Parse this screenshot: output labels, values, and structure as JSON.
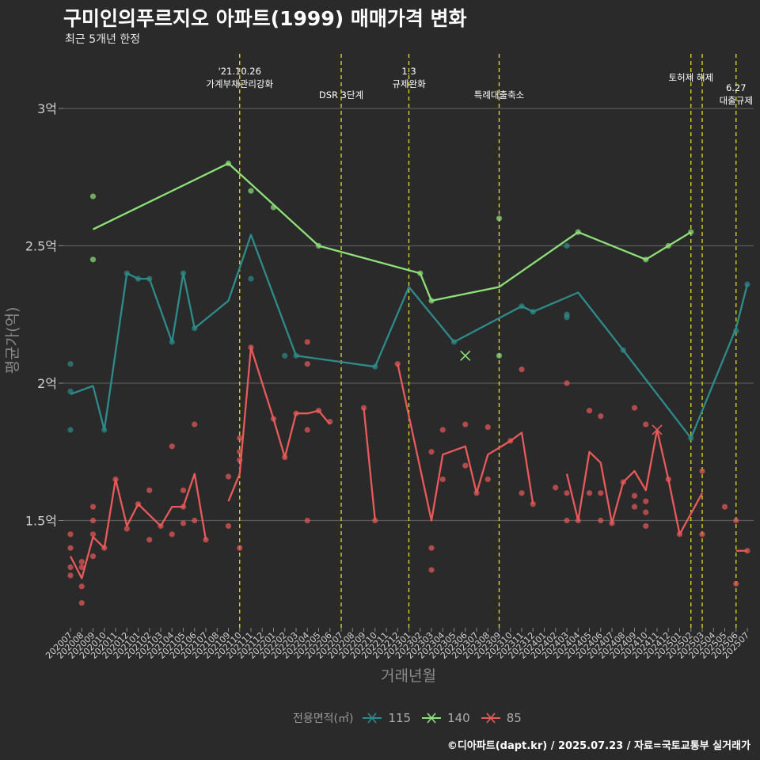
{
  "title": "구미인의푸르지오 아파트(1999) 매매가격 변화",
  "subtitle": "최근 5개년 한정",
  "caption": "©디아파트(dapt.kr) / 2025.07.23 / 자료=국토교통부 실거래가",
  "legend": {
    "title": "전용면적(㎡)",
    "items": [
      {
        "label": "115",
        "color": "#2e8b8b"
      },
      {
        "label": "140",
        "color": "#8ee07a"
      },
      {
        "label": "85",
        "color": "#e85a5a"
      }
    ]
  },
  "chart_data": {
    "type": "line",
    "xlabel": "거래년월",
    "ylabel": "평균가(억)",
    "ylim": [
      1.1,
      3.2
    ],
    "grid": true,
    "legend_position": "bottom",
    "categories": [
      "202007",
      "202008",
      "202009",
      "202010",
      "202011",
      "202012",
      "202101",
      "202102",
      "202103",
      "202104",
      "202105",
      "202106",
      "202107",
      "202108",
      "202109",
      "202110",
      "202111",
      "202112",
      "202201",
      "202202",
      "202203",
      "202204",
      "202205",
      "202206",
      "202207",
      "202208",
      "202209",
      "202210",
      "202211",
      "202212",
      "202301",
      "202302",
      "202303",
      "202304",
      "202305",
      "202306",
      "202307",
      "202308",
      "202309",
      "202310",
      "202311",
      "202312",
      "202401",
      "202402",
      "202403",
      "202404",
      "202405",
      "202406",
      "202407",
      "202408",
      "202409",
      "202410",
      "202411",
      "202412",
      "202501",
      "202502",
      "202503",
      "202504",
      "202505",
      "202506",
      "202507"
    ],
    "yticks": [
      {
        "value": 1.5,
        "label": "1.5억"
      },
      {
        "value": 2,
        "label": "2억"
      },
      {
        "value": 2.5,
        "label": "2.5억"
      },
      {
        "value": 3,
        "label": "3억"
      }
    ],
    "series": [
      {
        "name": "115",
        "color": "#2e8b8b",
        "line": [
          [
            "202007",
            1.96
          ],
          [
            "202009",
            1.99
          ],
          [
            "202010",
            1.83
          ],
          [
            "202012",
            2.4
          ],
          [
            "202101",
            2.38
          ],
          [
            "202102",
            2.38
          ],
          [
            "202104",
            2.15
          ],
          [
            "202105",
            2.4
          ],
          [
            "202106",
            2.2
          ],
          [
            "202109",
            2.3
          ],
          [
            "202111",
            2.54
          ],
          [
            "202203",
            2.1
          ],
          [
            "202210",
            2.06
          ],
          [
            "202301",
            2.35
          ],
          [
            "202305",
            2.15
          ],
          [
            "202311",
            2.28
          ],
          [
            "202312",
            2.26
          ],
          [
            "202404",
            2.33
          ],
          [
            "202408",
            2.12
          ],
          [
            "202502",
            1.8
          ],
          [
            "202506",
            2.2
          ],
          [
            "202507",
            2.36
          ]
        ],
        "points": [
          [
            "202007",
            1.97
          ],
          [
            "202007",
            2.07
          ],
          [
            "202007",
            1.83
          ],
          [
            "202010",
            1.83
          ],
          [
            "202012",
            2.4
          ],
          [
            "202101",
            2.38
          ],
          [
            "202102",
            2.38
          ],
          [
            "202104",
            2.15
          ],
          [
            "202105",
            2.4
          ],
          [
            "202106",
            2.2
          ],
          [
            "202111",
            2.38
          ],
          [
            "202202",
            2.1
          ],
          [
            "202203",
            2.1
          ],
          [
            "202210",
            2.06
          ],
          [
            "202305",
            2.15
          ],
          [
            "202311",
            2.28
          ],
          [
            "202312",
            2.26
          ],
          [
            "202403",
            2.5
          ],
          [
            "202403",
            2.25
          ],
          [
            "202403",
            2.24
          ],
          [
            "202408",
            2.12
          ],
          [
            "202502",
            1.8
          ],
          [
            "202506",
            2.19
          ],
          [
            "202507",
            2.36
          ]
        ],
        "cross": []
      },
      {
        "name": "140",
        "color": "#8ee07a",
        "line": [
          [
            "202009",
            2.56
          ],
          [
            "202109",
            2.8
          ],
          [
            "202205",
            2.5
          ],
          [
            "202302",
            2.4
          ],
          [
            "202303",
            2.3
          ],
          [
            "202309",
            2.35
          ],
          [
            "202404",
            2.55
          ],
          [
            "202410",
            2.45
          ],
          [
            "202412",
            2.5
          ],
          [
            "202502",
            2.55
          ]
        ],
        "points": [
          [
            "202009",
            2.68
          ],
          [
            "202009",
            2.45
          ],
          [
            "202109",
            2.8
          ],
          [
            "202111",
            2.7
          ],
          [
            "202201",
            2.64
          ],
          [
            "202205",
            2.5
          ],
          [
            "202302",
            2.4
          ],
          [
            "202303",
            2.3
          ],
          [
            "202309",
            2.6
          ],
          [
            "202309",
            2.1
          ],
          [
            "202404",
            2.55
          ],
          [
            "202410",
            2.45
          ],
          [
            "202412",
            2.5
          ],
          [
            "202502",
            2.55
          ]
        ],
        "cross": [
          [
            "202306",
            2.1
          ]
        ]
      },
      {
        "name": "85",
        "color": "#e85a5a",
        "segments": [
          [
            [
              "202007",
              1.37
            ],
            [
              "202008",
              1.29
            ],
            [
              "202009",
              1.44
            ],
            [
              "202010",
              1.4
            ],
            [
              "202011",
              1.65
            ],
            [
              "202012",
              1.48
            ],
            [
              "202101",
              1.56
            ],
            [
              "202103",
              1.48
            ],
            [
              "202104",
              1.55
            ],
            [
              "202105",
              1.55
            ],
            [
              "202106",
              1.67
            ],
            [
              "202107",
              1.43
            ]
          ],
          [
            [
              "202109",
              1.57
            ],
            [
              "202110",
              1.67
            ],
            [
              "202111",
              2.13
            ],
            [
              "202201",
              1.87
            ],
            [
              "202202",
              1.73
            ],
            [
              "202203",
              1.89
            ],
            [
              "202204",
              1.89
            ],
            [
              "202205",
              1.9
            ],
            [
              "202206",
              1.85
            ]
          ],
          [
            [
              "202209",
              1.91
            ],
            [
              "202210",
              1.5
            ]
          ],
          [
            [
              "202212",
              2.07
            ],
            [
              "202303",
              1.5
            ],
            [
              "202304",
              1.74
            ],
            [
              "202306",
              1.77
            ],
            [
              "202307",
              1.6
            ],
            [
              "202308",
              1.74
            ],
            [
              "202310",
              1.79
            ],
            [
              "202311",
              1.82
            ],
            [
              "202312",
              1.56
            ]
          ],
          [
            [
              "202403",
              1.67
            ],
            [
              "202404",
              1.5
            ],
            [
              "202405",
              1.75
            ],
            [
              "202406",
              1.71
            ],
            [
              "202407",
              1.49
            ],
            [
              "202408",
              1.64
            ],
            [
              "202409",
              1.68
            ],
            [
              "202410",
              1.61
            ],
            [
              "202411",
              1.83
            ],
            [
              "202412",
              1.65
            ],
            [
              "202501",
              1.45
            ],
            [
              "202503",
              1.6
            ]
          ],
          [
            [
              "202506",
              1.39
            ],
            [
              "202507",
              1.39
            ]
          ]
        ],
        "points": [
          [
            "202007",
            1.45
          ],
          [
            "202007",
            1.4
          ],
          [
            "202007",
            1.33
          ],
          [
            "202007",
            1.3
          ],
          [
            "202008",
            1.35
          ],
          [
            "202008",
            1.33
          ],
          [
            "202008",
            1.26
          ],
          [
            "202008",
            1.2
          ],
          [
            "202009",
            1.55
          ],
          [
            "202009",
            1.5
          ],
          [
            "202009",
            1.45
          ],
          [
            "202009",
            1.37
          ],
          [
            "202010",
            1.4
          ],
          [
            "202011",
            1.65
          ],
          [
            "202012",
            1.47
          ],
          [
            "202101",
            1.56
          ],
          [
            "202102",
            1.61
          ],
          [
            "202102",
            1.43
          ],
          [
            "202103",
            1.48
          ],
          [
            "202104",
            1.77
          ],
          [
            "202104",
            1.45
          ],
          [
            "202105",
            1.61
          ],
          [
            "202105",
            1.55
          ],
          [
            "202105",
            1.49
          ],
          [
            "202106",
            1.85
          ],
          [
            "202106",
            1.5
          ],
          [
            "202107",
            1.43
          ],
          [
            "202109",
            1.66
          ],
          [
            "202109",
            1.48
          ],
          [
            "202110",
            1.8
          ],
          [
            "202110",
            1.75
          ],
          [
            "202110",
            1.72
          ],
          [
            "202110",
            1.4
          ],
          [
            "202111",
            2.13
          ],
          [
            "202201",
            1.87
          ],
          [
            "202202",
            1.73
          ],
          [
            "202203",
            1.89
          ],
          [
            "202204",
            2.15
          ],
          [
            "202204",
            2.07
          ],
          [
            "202204",
            1.83
          ],
          [
            "202204",
            1.5
          ],
          [
            "202205",
            1.9
          ],
          [
            "202206",
            1.86
          ],
          [
            "202209",
            1.91
          ],
          [
            "202210",
            1.5
          ],
          [
            "202212",
            2.07
          ],
          [
            "202303",
            1.75
          ],
          [
            "202303",
            1.4
          ],
          [
            "202303",
            1.32
          ],
          [
            "202304",
            1.83
          ],
          [
            "202304",
            1.65
          ],
          [
            "202306",
            1.85
          ],
          [
            "202306",
            1.7
          ],
          [
            "202307",
            1.6
          ],
          [
            "202308",
            1.84
          ],
          [
            "202308",
            1.65
          ],
          [
            "202310",
            1.79
          ],
          [
            "202311",
            1.6
          ],
          [
            "202311",
            2.05
          ],
          [
            "202312",
            1.56
          ],
          [
            "202402",
            1.62
          ],
          [
            "202403",
            2.0
          ],
          [
            "202403",
            1.6
          ],
          [
            "202403",
            1.5
          ],
          [
            "202404",
            1.5
          ],
          [
            "202405",
            1.9
          ],
          [
            "202405",
            1.6
          ],
          [
            "202406",
            1.88
          ],
          [
            "202406",
            1.6
          ],
          [
            "202406",
            1.5
          ],
          [
            "202407",
            1.49
          ],
          [
            "202408",
            1.64
          ],
          [
            "202409",
            1.91
          ],
          [
            "202409",
            1.59
          ],
          [
            "202409",
            1.55
          ],
          [
            "202410",
            1.85
          ],
          [
            "202410",
            1.57
          ],
          [
            "202410",
            1.53
          ],
          [
            "202410",
            1.48
          ],
          [
            "202412",
            1.65
          ],
          [
            "202501",
            1.45
          ],
          [
            "202503",
            1.68
          ],
          [
            "202503",
            1.45
          ],
          [
            "202505",
            1.55
          ],
          [
            "202506",
            1.5
          ],
          [
            "202506",
            1.27
          ],
          [
            "202507",
            1.39
          ]
        ],
        "cross": [
          [
            "202411",
            1.83
          ]
        ]
      }
    ],
    "annotations": [
      {
        "month": "202110",
        "lines": [
          "'21.10.26",
          "가계부채관리강화"
        ],
        "level": 0
      },
      {
        "month": "202207",
        "lines": [
          "DSR 3단계"
        ],
        "level": 1
      },
      {
        "month": "202301",
        "lines": [
          "1.3",
          "규제완화"
        ],
        "level": 0
      },
      {
        "month": "202309",
        "lines": [
          "특례대출축소"
        ],
        "level": 1
      },
      {
        "month": "202502",
        "lines": [
          "토허제 해제"
        ],
        "level": 2
      },
      {
        "month": "202503",
        "lines": [],
        "level": 0
      },
      {
        "month": "202506",
        "lines": [
          "6.27",
          "대출규제"
        ],
        "level": 3
      }
    ]
  }
}
